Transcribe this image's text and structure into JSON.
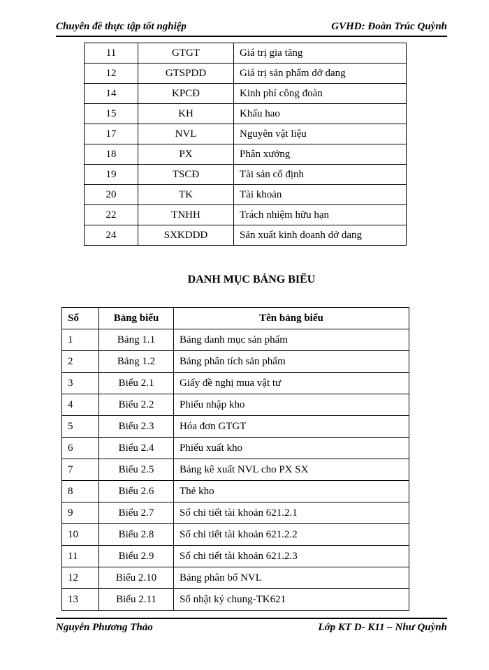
{
  "header": {
    "left": "Chuyên đề thực tập tốt nghiệp",
    "right": "GVHD: Đoàn Trúc Quỳnh"
  },
  "footer": {
    "left": "Nguyễn Phương Thảo",
    "right": "Lớp KT D- K11 – Như Quỳnh"
  },
  "abbrev_rows": [
    {
      "n": "11",
      "abbr": "GTGT",
      "desc": "Giá trị gia tăng"
    },
    {
      "n": "12",
      "abbr": "GTSPDD",
      "desc": "Giá trị sản phẩm dở dang"
    },
    {
      "n": "14",
      "abbr": "KPCĐ",
      "desc": "Kinh phí công đoàn"
    },
    {
      "n": "15",
      "abbr": "KH",
      "desc": "Khấu hao"
    },
    {
      "n": "17",
      "abbr": "NVL",
      "desc": "Nguyên vật liệu"
    },
    {
      "n": "18",
      "abbr": "PX",
      "desc": "Phân xưởng"
    },
    {
      "n": "19",
      "abbr": "TSCĐ",
      "desc": "Tài sản cố định"
    },
    {
      "n": "20",
      "abbr": "TK",
      "desc": "Tài khoản"
    },
    {
      "n": "22",
      "abbr": "TNHH",
      "desc": "Trách nhiệm hữu hạn"
    },
    {
      "n": "24",
      "abbr": "SXKDDD",
      "desc": "Sản xuất kinh doanh dở dang"
    }
  ],
  "section_title": "DANH MỤC BẢNG BIỂU",
  "list_headers": {
    "so": "Số",
    "bb": "Bảng biểu",
    "ten": "Tên bảng biểu"
  },
  "list_rows": [
    {
      "so": "1",
      "bb": "Bảng 1.1",
      "ten": "Bảng danh mục sản phẩm"
    },
    {
      "so": "2",
      "bb": "Bảng 1.2",
      "ten": "Bảng phân tích sản phẩm"
    },
    {
      "so": "3",
      "bb": "Biểu 2.1",
      "ten": "Giấy đề nghị mua vật tư"
    },
    {
      "so": "4",
      "bb": "Biểu 2.2",
      "ten": "Phiếu nhập kho"
    },
    {
      "so": "5",
      "bb": "Biểu 2.3",
      "ten": "Hóa đơn GTGT"
    },
    {
      "so": "6",
      "bb": "Biểu 2.4",
      "ten": "Phiếu xuất kho"
    },
    {
      "so": "7",
      "bb": "Biểu 2.5",
      "ten": "Bảng kê xuất NVL cho PX SX"
    },
    {
      "so": "8",
      "bb": "Biểu 2.6",
      "ten": "Thẻ kho"
    },
    {
      "so": "9",
      "bb": "Biểu 2.7",
      "ten": "Sổ chi tiết tài khoản 621.2.1"
    },
    {
      "so": "10",
      "bb": "Biểu 2.8",
      "ten": "Sổ chi tiết tài khoản 621.2.2"
    },
    {
      "so": "11",
      "bb": "Biểu 2.9",
      "ten": "Sổ chi tiết tài khoản 621.2.3"
    },
    {
      "so": "12",
      "bb": "Biểu 2.10",
      "ten": "Bảng phân bổ NVL"
    },
    {
      "so": "13",
      "bb": "Biểu 2.11",
      "ten": "Sổ nhật ký chung-TK621"
    }
  ]
}
